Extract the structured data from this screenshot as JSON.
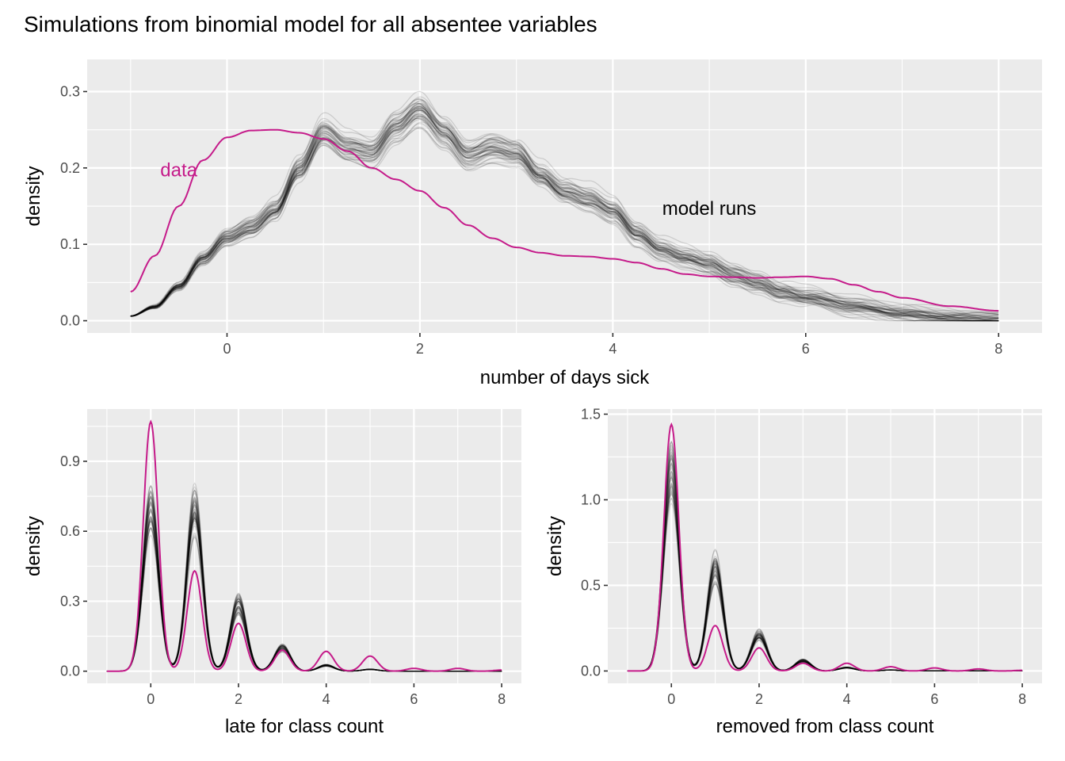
{
  "title": "Simulations from binomial model for all absentee variables",
  "colors": {
    "panel_bg": "#ebebeb",
    "grid": "#ffffff",
    "model": "#000000",
    "data": "#c51b8a",
    "tick_text": "#4d4d4d",
    "tick_mark": "#333333"
  },
  "chart_data": [
    {
      "type": "line",
      "panel": "top",
      "xlabel": "number of days sick",
      "ylabel": "density",
      "xlim": [
        -1.45,
        8.45
      ],
      "ylim": [
        -0.016,
        0.342
      ],
      "xticks": [
        0,
        2,
        4,
        6,
        8
      ],
      "xtick_labels": [
        "0",
        "2",
        "4",
        "6",
        "8"
      ],
      "yticks": [
        0.0,
        0.1,
        0.2,
        0.3
      ],
      "ytick_labels": [
        "0.0",
        "0.1",
        "0.2",
        "0.3"
      ],
      "grid": true,
      "annotations": [
        {
          "text": "data",
          "x": -0.5,
          "y": 0.197,
          "color": "#c51b8a"
        },
        {
          "text": "model runs",
          "x": 5.0,
          "y": 0.147,
          "color": "#000000"
        }
      ],
      "model_runs": {
        "label": "model runs",
        "count": 50,
        "mean_curve": {
          "x": [
            -1,
            -0.75,
            -0.5,
            -0.25,
            0,
            0.25,
            0.5,
            0.75,
            1,
            1.25,
            1.5,
            1.75,
            2,
            2.25,
            2.5,
            2.75,
            3,
            3.25,
            3.5,
            3.75,
            4,
            4.25,
            4.5,
            4.75,
            5,
            5.25,
            5.5,
            5.75,
            6,
            6.5,
            7,
            7.5,
            8
          ],
          "y": [
            0.006,
            0.018,
            0.045,
            0.082,
            0.11,
            0.123,
            0.145,
            0.198,
            0.245,
            0.225,
            0.218,
            0.252,
            0.275,
            0.247,
            0.218,
            0.228,
            0.22,
            0.19,
            0.168,
            0.158,
            0.142,
            0.112,
            0.092,
            0.083,
            0.076,
            0.063,
            0.053,
            0.04,
            0.033,
            0.02,
            0.01,
            0.006,
            0.004
          ]
        }
      },
      "data_curve": {
        "label": "data",
        "x": [
          -1,
          -0.75,
          -0.5,
          -0.25,
          0,
          0.25,
          0.5,
          0.75,
          1,
          1.25,
          1.5,
          1.75,
          2,
          2.25,
          2.5,
          2.75,
          3,
          3.25,
          3.5,
          3.75,
          4,
          4.25,
          4.5,
          4.75,
          5,
          5.25,
          5.5,
          5.75,
          6,
          6.25,
          6.5,
          6.75,
          7,
          7.5,
          8
        ],
        "y": [
          0.038,
          0.085,
          0.15,
          0.21,
          0.24,
          0.249,
          0.25,
          0.246,
          0.238,
          0.222,
          0.2,
          0.185,
          0.17,
          0.148,
          0.125,
          0.108,
          0.096,
          0.089,
          0.085,
          0.084,
          0.081,
          0.076,
          0.068,
          0.061,
          0.058,
          0.057,
          0.056,
          0.057,
          0.058,
          0.055,
          0.047,
          0.038,
          0.03,
          0.019,
          0.013
        ]
      }
    },
    {
      "type": "line",
      "panel": "bottom-left",
      "xlabel": "late for class count",
      "ylabel": "density",
      "xlim": [
        -1.45,
        8.45
      ],
      "ylim": [
        -0.052,
        1.124
      ],
      "xticks": [
        0,
        2,
        4,
        6,
        8
      ],
      "xtick_labels": [
        "0",
        "2",
        "4",
        "6",
        "8"
      ],
      "yticks": [
        0.0,
        0.3,
        0.6,
        0.9
      ],
      "ytick_labels": [
        "0.0",
        "0.3",
        "0.6",
        "0.9"
      ],
      "grid": true,
      "model_runs": {
        "count": 50,
        "mean_peaks": [
          {
            "x": 0,
            "y": 0.7
          },
          {
            "x": 1,
            "y": 0.69
          },
          {
            "x": 2,
            "y": 0.29
          },
          {
            "x": 3,
            "y": 0.1
          },
          {
            "x": 4,
            "y": 0.025
          },
          {
            "x": 5,
            "y": 0.008
          }
        ]
      },
      "data_curve": {
        "peaks": [
          {
            "x": 0,
            "y": 1.07
          },
          {
            "x": 1,
            "y": 0.43
          },
          {
            "x": 2,
            "y": 0.205
          },
          {
            "x": 3,
            "y": 0.09
          },
          {
            "x": 4,
            "y": 0.085
          },
          {
            "x": 5,
            "y": 0.065
          },
          {
            "x": 6,
            "y": 0.012
          },
          {
            "x": 7,
            "y": 0.012
          },
          {
            "x": 8,
            "y": 0.005
          }
        ]
      }
    },
    {
      "type": "line",
      "panel": "bottom-right",
      "xlabel": "removed from class count",
      "ylabel": "density",
      "xlim": [
        -1.45,
        8.45
      ],
      "ylim": [
        -0.072,
        1.53
      ],
      "xticks": [
        0,
        2,
        4,
        6,
        8
      ],
      "xtick_labels": [
        "0",
        "2",
        "4",
        "6",
        "8"
      ],
      "yticks": [
        0.0,
        0.5,
        1.0,
        1.5
      ],
      "ytick_labels": [
        "0.0",
        "0.5",
        "1.0",
        "1.5"
      ],
      "grid": true,
      "model_runs": {
        "count": 50,
        "mean_peaks": [
          {
            "x": 0,
            "y": 1.17
          },
          {
            "x": 1,
            "y": 0.61
          },
          {
            "x": 2,
            "y": 0.21
          },
          {
            "x": 3,
            "y": 0.06
          },
          {
            "x": 4,
            "y": 0.02
          },
          {
            "x": 5,
            "y": 0.006
          }
        ]
      },
      "data_curve": {
        "peaks": [
          {
            "x": 0,
            "y": 1.44
          },
          {
            "x": 1,
            "y": 0.265
          },
          {
            "x": 2,
            "y": 0.135
          },
          {
            "x": 3,
            "y": 0.045
          },
          {
            "x": 4,
            "y": 0.045
          },
          {
            "x": 5,
            "y": 0.025
          },
          {
            "x": 6,
            "y": 0.018
          },
          {
            "x": 7,
            "y": 0.012
          },
          {
            "x": 8,
            "y": 0.004
          }
        ]
      }
    }
  ]
}
